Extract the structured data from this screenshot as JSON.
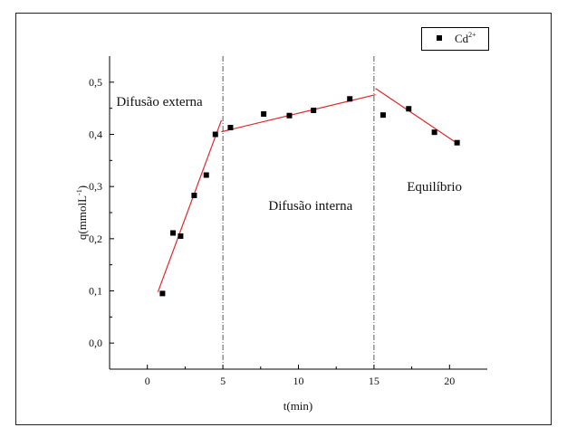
{
  "chart_data": {
    "type": "scatter",
    "xlabel": "t(min)",
    "ylabel": "q(mmolL",
    "ylabel_sup": "-1",
    "ylabel_end": ")",
    "xlim": [
      -2.5,
      22.5
    ],
    "ylim": [
      -0.05,
      0.55
    ],
    "x_ticks": [
      0,
      5,
      10,
      15,
      20
    ],
    "x_tick_labels": [
      "0",
      "5",
      "10",
      "15",
      "20"
    ],
    "y_ticks": [
      0.0,
      0.1,
      0.2,
      0.3,
      0.4,
      0.5
    ],
    "y_tick_labels": [
      "0,0",
      "0,1",
      "0,2",
      "0,3",
      "0,4",
      "0,5"
    ],
    "grid": false,
    "legend_position": "top-right",
    "series": [
      {
        "name": "Cd",
        "name_sup": "2+",
        "marker": "square",
        "color": "#000000",
        "x": [
          1.0,
          1.7,
          2.2,
          3.1,
          3.9,
          4.5,
          5.5,
          7.7,
          9.4,
          11.0,
          13.4,
          15.6,
          17.3,
          19.0,
          20.5
        ],
        "y": [
          0.095,
          0.211,
          0.205,
          0.283,
          0.322,
          0.4,
          0.413,
          0.439,
          0.436,
          0.446,
          0.468,
          0.437,
          0.449,
          0.404,
          0.384
        ]
      }
    ],
    "fit_lines": [
      {
        "x": [
          0.7,
          4.9
        ],
        "y": [
          0.098,
          0.427
        ]
      },
      {
        "x": [
          4.9,
          15.1
        ],
        "y": [
          0.405,
          0.476
        ]
      },
      {
        "x": [
          15.1,
          20.6
        ],
        "y": [
          0.488,
          0.381
        ]
      }
    ],
    "fit_color": "#e0282b",
    "vlines": [
      5,
      15
    ],
    "annotations": [
      {
        "text": "Difusão externa",
        "x": 0.8,
        "y": 0.455
      },
      {
        "text": "Difusão interna",
        "x": 10.8,
        "y": 0.255
      },
      {
        "text": "Equilíbrio",
        "x": 19.0,
        "y": 0.292
      }
    ]
  }
}
